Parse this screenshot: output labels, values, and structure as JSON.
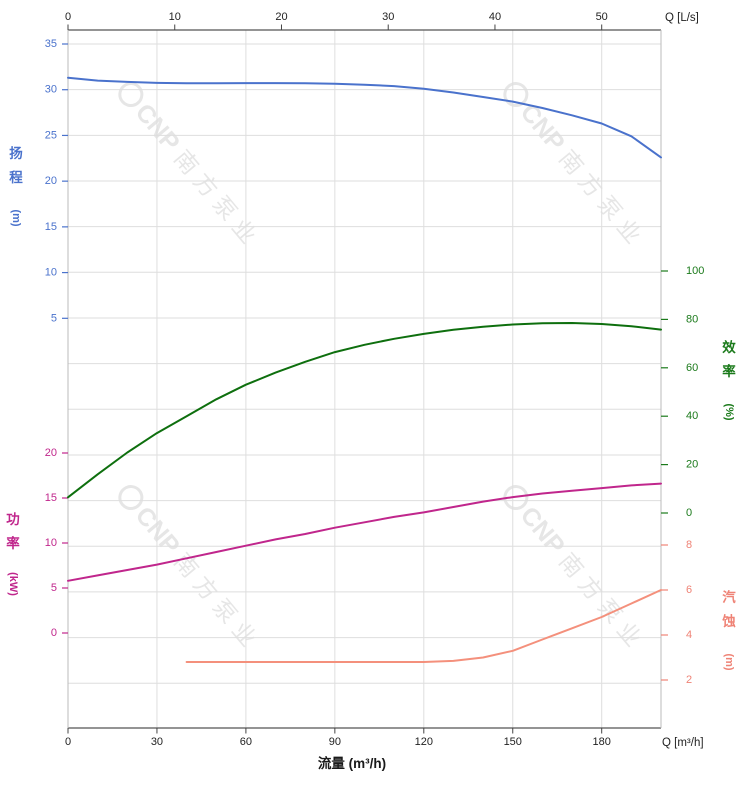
{
  "watermark": {
    "logo_text": "CNP",
    "text": "南方泵业",
    "color": "#d2d2d2"
  },
  "chart_data": {
    "type": "line",
    "title": "",
    "grid": true,
    "legend_position": "none",
    "x_axis_bottom": {
      "label": "流量 (m³/h)",
      "corner_label": "Q [m³/h]",
      "tick_values": [
        0,
        30,
        60,
        90,
        120,
        150,
        180
      ],
      "range": [
        0,
        200
      ],
      "color": "#222222"
    },
    "x_axis_top": {
      "corner_label": "Q [L/s]",
      "tick_values": [
        0,
        10,
        20,
        30,
        40,
        50
      ],
      "range": [
        0,
        55.6
      ],
      "m3h_per_ls": 3.6,
      "color": "#222222"
    },
    "y_axes": [
      {
        "id": "head",
        "title": "扬程",
        "unit": "(m)",
        "color": "#4a72cc",
        "side": "left",
        "tick_values": [
          5,
          10,
          15,
          20,
          25,
          30,
          35
        ],
        "range": [
          5,
          35
        ]
      },
      {
        "id": "power",
        "title": "功率",
        "unit": "(kW)",
        "color": "#c0268c",
        "side": "left",
        "tick_values": [
          0,
          5,
          10,
          15,
          20
        ],
        "range": [
          0,
          20
        ]
      },
      {
        "id": "efficiency",
        "title": "效率",
        "unit": "(%)",
        "color": "#1b7a1b",
        "side": "right",
        "tick_values": [
          0,
          20,
          40,
          60,
          80,
          100
        ],
        "range": [
          0,
          100
        ]
      },
      {
        "id": "npsh",
        "title": "汽蚀",
        "unit": "(m)",
        "color": "#ef8376",
        "side": "right",
        "tick_values": [
          2,
          4,
          6,
          8
        ],
        "range": [
          2,
          8
        ]
      }
    ],
    "series": [
      {
        "name": "head",
        "axis": "head",
        "color": "#4a72cc",
        "points": [
          [
            0,
            31.3
          ],
          [
            10,
            31.0
          ],
          [
            20,
            30.85
          ],
          [
            30,
            30.75
          ],
          [
            40,
            30.7
          ],
          [
            50,
            30.7
          ],
          [
            60,
            30.72
          ],
          [
            70,
            30.72
          ],
          [
            80,
            30.7
          ],
          [
            90,
            30.65
          ],
          [
            100,
            30.55
          ],
          [
            110,
            30.4
          ],
          [
            120,
            30.1
          ],
          [
            130,
            29.7
          ],
          [
            140,
            29.2
          ],
          [
            150,
            28.7
          ],
          [
            160,
            28.0
          ],
          [
            170,
            27.2
          ],
          [
            180,
            26.3
          ],
          [
            190,
            24.9
          ],
          [
            200,
            22.6
          ]
        ]
      },
      {
        "name": "efficiency",
        "axis": "efficiency",
        "color": "#0e6f0e",
        "points": [
          [
            0,
            6.5
          ],
          [
            10,
            16
          ],
          [
            20,
            25
          ],
          [
            30,
            33
          ],
          [
            40,
            40
          ],
          [
            50,
            47
          ],
          [
            60,
            53
          ],
          [
            70,
            58
          ],
          [
            80,
            62.5
          ],
          [
            90,
            66.5
          ],
          [
            100,
            69.5
          ],
          [
            110,
            72
          ],
          [
            120,
            74
          ],
          [
            130,
            75.7
          ],
          [
            140,
            77
          ],
          [
            150,
            77.9
          ],
          [
            160,
            78.4
          ],
          [
            170,
            78.5
          ],
          [
            180,
            78.1
          ],
          [
            190,
            77.2
          ],
          [
            200,
            75.8
          ]
        ]
      },
      {
        "name": "power",
        "axis": "power",
        "color": "#c0268c",
        "points": [
          [
            0,
            5.8
          ],
          [
            10,
            6.4
          ],
          [
            20,
            7.0
          ],
          [
            30,
            7.6
          ],
          [
            40,
            8.3
          ],
          [
            50,
            9.0
          ],
          [
            60,
            9.7
          ],
          [
            70,
            10.4
          ],
          [
            80,
            11.0
          ],
          [
            90,
            11.7
          ],
          [
            100,
            12.3
          ],
          [
            110,
            12.9
          ],
          [
            120,
            13.4
          ],
          [
            130,
            14.0
          ],
          [
            140,
            14.6
          ],
          [
            150,
            15.1
          ],
          [
            160,
            15.5
          ],
          [
            170,
            15.8
          ],
          [
            180,
            16.1
          ],
          [
            190,
            16.4
          ],
          [
            200,
            16.6
          ]
        ]
      },
      {
        "name": "npsh",
        "axis": "npsh",
        "color": "#f4907c",
        "points": [
          [
            40,
            2.8
          ],
          [
            60,
            2.8
          ],
          [
            80,
            2.8
          ],
          [
            100,
            2.8
          ],
          [
            120,
            2.8
          ],
          [
            130,
            2.85
          ],
          [
            140,
            3.0
          ],
          [
            150,
            3.3
          ],
          [
            160,
            3.8
          ],
          [
            170,
            4.3
          ],
          [
            180,
            4.8
          ],
          [
            190,
            5.4
          ],
          [
            200,
            6.0
          ]
        ]
      }
    ]
  }
}
